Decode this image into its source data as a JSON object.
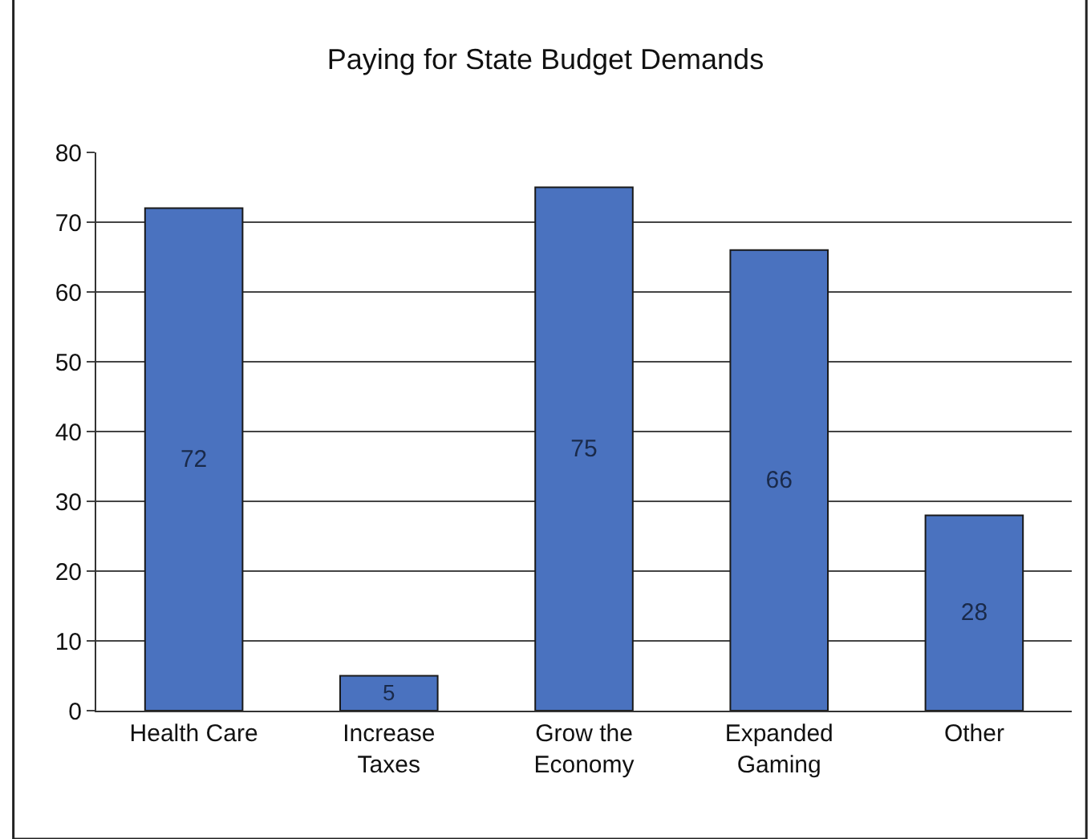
{
  "chart_data": {
    "type": "bar",
    "title": "Paying for State Budget Demands",
    "categories": [
      "Health Care",
      "Increase\nTaxes",
      "Grow the\nEconomy",
      "Expanded\nGaming",
      "Other"
    ],
    "values": [
      72,
      5,
      75,
      66,
      28
    ],
    "color": "#4a72bf",
    "ylim": [
      0,
      80
    ],
    "yticks": [
      0,
      10,
      20,
      30,
      40,
      50,
      60,
      70,
      80
    ],
    "grid": "y",
    "data_labels": true,
    "legend": false
  }
}
